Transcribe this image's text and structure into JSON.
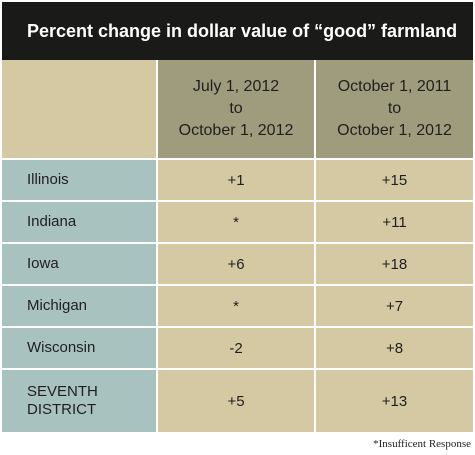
{
  "chart_data": {
    "type": "table",
    "title": "Percent change in dollar value of “good” farmland",
    "columns": [
      {
        "line1": "July 1, 2012",
        "line2": "to",
        "line3": "October 1, 2012"
      },
      {
        "line1": "October 1, 2011",
        "line2": "to",
        "line3": "October 1, 2012"
      }
    ],
    "rows": [
      {
        "label": "Illinois",
        "label2": "",
        "values": [
          "+1",
          "+15"
        ]
      },
      {
        "label": "Indiana",
        "label2": "",
        "values": [
          "*",
          "+11"
        ]
      },
      {
        "label": "Iowa",
        "label2": "",
        "values": [
          "+6",
          "+18"
        ]
      },
      {
        "label": "Michigan",
        "label2": "",
        "values": [
          "*",
          "+7"
        ]
      },
      {
        "label": "Wisconsin",
        "label2": "",
        "values": [
          "-2",
          "+8"
        ]
      },
      {
        "label": "SEVENTH",
        "label2": "DISTRICT",
        "values": [
          "+5",
          "+13"
        ]
      }
    ],
    "footnote": "*Insufficent Response"
  }
}
